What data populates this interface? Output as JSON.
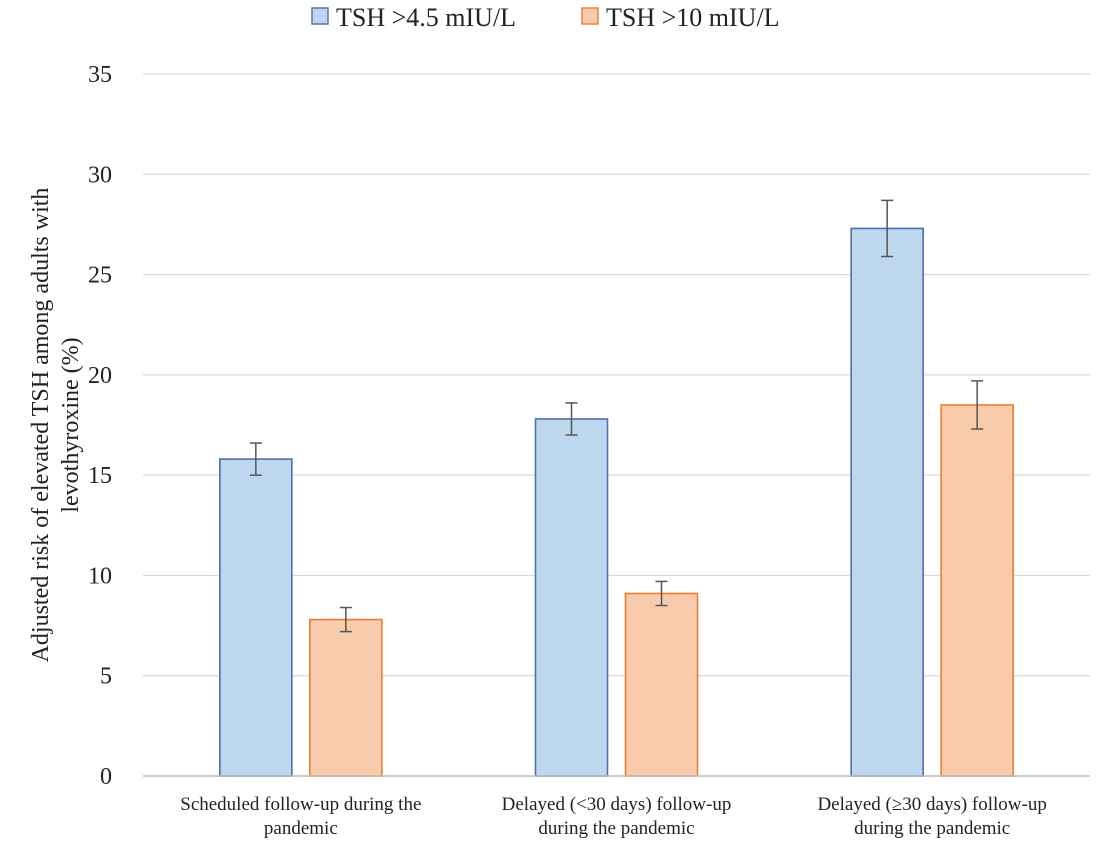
{
  "chart_data": {
    "type": "bar",
    "title": "",
    "ylabel_lines": [
      "Adjusted risk of elevated TSH among adults with",
      "levothyroxine (%)"
    ],
    "xlabel": "",
    "ylim": [
      0,
      35
    ],
    "yticks": [
      0,
      5,
      10,
      15,
      20,
      25,
      30,
      35
    ],
    "grid": true,
    "legend_position": "top-center",
    "categories": [
      [
        "Scheduled follow-up during the",
        "pandemic"
      ],
      [
        "Delayed (<30 days) follow-up",
        "during the pandemic"
      ],
      [
        "Delayed (≥30 days) follow-up",
        "during the pandemic"
      ]
    ],
    "series": [
      {
        "name": "TSH >4.5 mIU/L",
        "fill": "#bdd7ee",
        "stroke": "#4f6fae",
        "values": [
          15.8,
          17.8,
          27.3
        ],
        "error_low": [
          15.0,
          17.0,
          25.9
        ],
        "error_high": [
          16.6,
          18.6,
          28.7
        ]
      },
      {
        "name": "TSH >10 mIU/L",
        "fill": "#f8cbad",
        "stroke": "#ed7d31",
        "values": [
          7.8,
          9.1,
          18.5
        ],
        "error_low": [
          7.2,
          8.5,
          17.3
        ],
        "error_high": [
          8.4,
          9.7,
          19.7
        ]
      }
    ]
  }
}
